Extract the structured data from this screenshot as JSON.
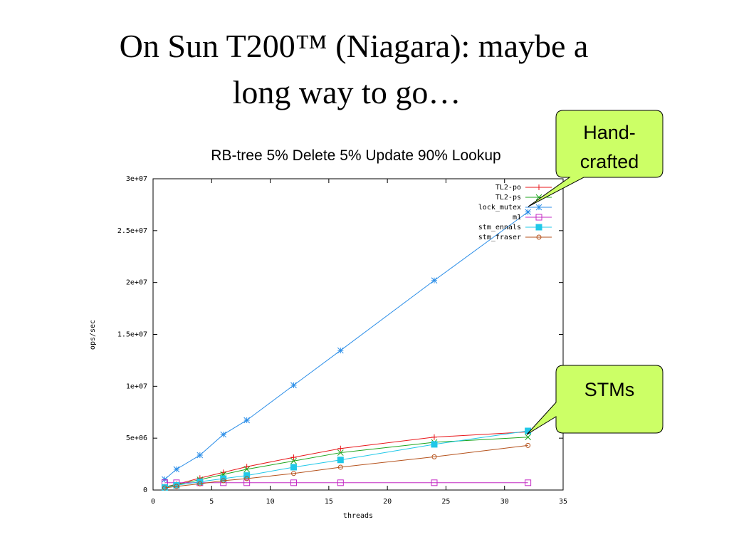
{
  "slide_title": [
    "On Sun T200™ (Niagara): maybe a",
    "long way to go…"
  ],
  "callouts": [
    {
      "lines": [
        "Hand-",
        "crafted"
      ]
    },
    {
      "lines": [
        "STMs"
      ]
    }
  ],
  "chart_data": {
    "type": "line",
    "title": "RB-tree 5% Delete 5% Update 90% Lookup",
    "x_label": "threads",
    "y_label": "ops/sec",
    "x": [
      1,
      2,
      4,
      6,
      8,
      12,
      16,
      24,
      32
    ],
    "xlim": [
      0,
      35
    ],
    "xticks": [
      0,
      5,
      10,
      15,
      20,
      25,
      30,
      35
    ],
    "ylim": [
      0,
      30000000
    ],
    "yticks": [
      0,
      {
        "value": 5000000,
        "label": "5e+06"
      },
      {
        "value": 10000000,
        "label": "1e+07"
      },
      {
        "value": 15000000,
        "label": "1.5e+07"
      },
      {
        "value": 20000000,
        "label": "2e+07"
      },
      {
        "value": 25000000,
        "label": "2.5e+07"
      },
      {
        "value": 30000000,
        "label": "3e+07"
      }
    ],
    "legend": "top right",
    "series": [
      {
        "name": "TL2-po",
        "color": "#e8171b",
        "marker": "plus",
        "values": [
          300000,
          550000,
          1150000,
          1700000,
          2250000,
          3150000,
          4000000,
          5100000,
          5600000
        ]
      },
      {
        "name": "TL2-ps",
        "color": "#1ca51c",
        "marker": "cross",
        "values": [
          300000,
          500000,
          1000000,
          1500000,
          2000000,
          2800000,
          3600000,
          4600000,
          5100000
        ]
      },
      {
        "name": "lock_mutex",
        "color": "#2b8ee8",
        "marker": "star",
        "values": [
          1030000,
          2000000,
          3360000,
          5350000,
          6730000,
          10100000,
          13450000,
          20200000,
          26800000
        ]
      },
      {
        "name": "m1",
        "color": "#c42bc4",
        "marker": "square-open",
        "values": [
          700000,
          700000,
          700000,
          700000,
          700000,
          700000,
          700000,
          700000,
          700000
        ]
      },
      {
        "name": "stm_ennals",
        "color": "#20c8e8",
        "marker": "square",
        "values": [
          250000,
          450000,
          800000,
          1100000,
          1400000,
          2200000,
          2900000,
          4400000,
          5700000
        ]
      },
      {
        "name": "stm_fraser",
        "color": "#b5521c",
        "marker": "circle",
        "values": [
          200000,
          350000,
          600000,
          900000,
          1100000,
          1600000,
          2200000,
          3200000,
          4300000
        ]
      }
    ]
  }
}
